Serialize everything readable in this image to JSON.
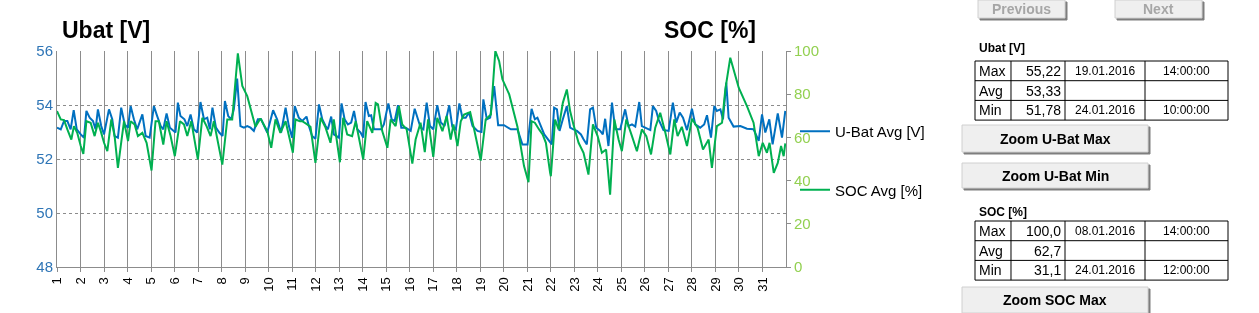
{
  "chart_data": {
    "type": "line",
    "ylabel": "Ubat [V]",
    "y2label": "SOC [%]",
    "xlim": [
      1,
      32
    ],
    "xticks": [
      1,
      2,
      3,
      4,
      5,
      6,
      7,
      8,
      9,
      10,
      11,
      12,
      13,
      14,
      15,
      16,
      17,
      18,
      19,
      20,
      21,
      22,
      23,
      24,
      25,
      26,
      27,
      28,
      29,
      30,
      31
    ],
    "ylim": [
      48,
      56
    ],
    "yticks": [
      48,
      50,
      52,
      54,
      56
    ],
    "y2lim": [
      0,
      100
    ],
    "y2ticks": [
      0,
      20,
      40,
      60,
      80,
      100
    ],
    "grid": true,
    "legend": "right",
    "marker": "none",
    "line_style": "solid",
    "series": [
      {
        "name": "U-Bat Avg [V]",
        "color": "#0070c0",
        "x": [
          1.0,
          1.16,
          1.3,
          1.44,
          1.58,
          1.71,
          1.84,
          2.01,
          2.15,
          2.25,
          2.39,
          2.53,
          2.64,
          2.74,
          2.88,
          3.0,
          3.21,
          3.35,
          3.45,
          3.59,
          3.73,
          3.88,
          4.02,
          4.13,
          4.27,
          4.41,
          4.63,
          4.77,
          4.94,
          5.12,
          5.26,
          5.41,
          5.52,
          5.66,
          5.8,
          6.04,
          6.14,
          6.25,
          6.42,
          6.54,
          6.68,
          6.82,
          6.96,
          7.1,
          7.25,
          7.39,
          7.5,
          7.61,
          7.76,
          7.9,
          8.04,
          8.14,
          8.28,
          8.41,
          8.52,
          8.66,
          8.8,
          8.95,
          9.09,
          9.23,
          9.37,
          9.54,
          9.68,
          9.94,
          10.19,
          10.36,
          10.53,
          10.72,
          10.86,
          11.0,
          11.11,
          11.28,
          11.43,
          11.61,
          11.71,
          11.85,
          11.99,
          12.14,
          12.28,
          12.42,
          12.52,
          12.66,
          12.77,
          12.99,
          13.1,
          13.23,
          13.37,
          13.51,
          13.63,
          13.77,
          13.91,
          14.02,
          14.12,
          14.26,
          14.36,
          14.48,
          14.65,
          14.79,
          14.9,
          15.09,
          15.23,
          15.36,
          15.5,
          15.64,
          15.83,
          16.04,
          16.21,
          16.35,
          16.46,
          16.58,
          16.72,
          16.86,
          17.0,
          17.17,
          17.32,
          17.48,
          17.68,
          17.81,
          17.96,
          18.11,
          18.24,
          18.38,
          18.52,
          18.67,
          18.88,
          19.05,
          19.13,
          19.28,
          19.42,
          19.59,
          19.76,
          20.01,
          20.3,
          20.58,
          20.79,
          21.01,
          21.18,
          21.32,
          21.43,
          21.72,
          22.04,
          22.14,
          22.26,
          22.37,
          22.51,
          22.68,
          22.82,
          22.96,
          23.11,
          23.28,
          23.39,
          23.53,
          23.67,
          23.79,
          23.93,
          24.1,
          24.21,
          24.31,
          24.45,
          24.6,
          24.74,
          24.95,
          25.16,
          25.3,
          25.45,
          25.59,
          25.76,
          25.87,
          26.01,
          26.23,
          26.34,
          26.48,
          26.58,
          26.79,
          27.01,
          27.19,
          27.33,
          27.48,
          27.62,
          27.79,
          28.0,
          28.14,
          28.35,
          28.52,
          28.64,
          28.81,
          28.95,
          29.06,
          29.21,
          29.32,
          29.46,
          29.56,
          29.77,
          30.06,
          30.34,
          30.62,
          30.84,
          30.98,
          31.12,
          31.29,
          31.43,
          31.65,
          31.83,
          31.97
        ],
        "values": [
          53.16,
          53.1,
          53.41,
          53.41,
          53.1,
          53.81,
          53.1,
          52.91,
          52.79,
          53.78,
          53.53,
          53.41,
          53.1,
          53.84,
          53.22,
          52.91,
          53.84,
          53.47,
          52.85,
          52.79,
          53.9,
          53.28,
          53.16,
          53.96,
          53.47,
          53.1,
          53.65,
          52.85,
          52.79,
          53.96,
          53.59,
          53.22,
          53.1,
          53.69,
          53.16,
          52.98,
          54.09,
          53.59,
          53.47,
          53.22,
          53.65,
          53.1,
          52.98,
          54.11,
          53.47,
          53.53,
          53.1,
          53.9,
          53.16,
          52.98,
          52.85,
          54.15,
          53.59,
          53.47,
          53.84,
          54.98,
          53.22,
          53.16,
          53.22,
          53.16,
          53.04,
          53.47,
          53.47,
          52.98,
          53.81,
          53.47,
          52.98,
          53.9,
          53.22,
          52.79,
          53.96,
          53.53,
          53.41,
          53.57,
          53.22,
          52.85,
          52.75,
          54.02,
          53.47,
          53.22,
          53.1,
          53.57,
          52.91,
          52.79,
          54.06,
          53.47,
          53.28,
          53.35,
          53.78,
          53.1,
          52.98,
          52.79,
          54.11,
          53.59,
          53.62,
          53.1,
          53.1,
          53.1,
          53.28,
          54.06,
          53.47,
          53.41,
          53.99,
          53.16,
          53.16,
          53.04,
          53.86,
          53.47,
          53.16,
          53.1,
          54.09,
          53.22,
          53.1,
          53.99,
          53.35,
          53.22,
          53.99,
          53.2,
          53.1,
          54.06,
          53.53,
          53.53,
          53.72,
          53.22,
          53.04,
          53.0,
          54.21,
          53.47,
          53.53,
          54.7,
          53.25,
          53.25,
          53.1,
          53.1,
          52.54,
          52.54,
          53.86,
          53.47,
          53.53,
          52.91,
          52.54,
          53.9,
          53.84,
          53.04,
          53.47,
          53.96,
          53.16,
          53.1,
          53.04,
          52.91,
          52.73,
          52.54,
          53.84,
          53.9,
          53.16,
          53.04,
          52.91,
          53.49,
          52.48,
          54.09,
          53.1,
          53.1,
          53.84,
          53.22,
          53.28,
          53.2,
          54.11,
          53.22,
          53.16,
          53.07,
          53.96,
          53.78,
          53.47,
          53.07,
          53.04,
          54.09,
          53.35,
          53.72,
          53.53,
          53.07,
          53.86,
          53.28,
          53.16,
          53.28,
          53.62,
          52.79,
          53.96,
          53.78,
          53.84,
          53.47,
          54.83,
          53.53,
          53.2,
          53.22,
          53.12,
          53.1,
          52.67,
          53.65,
          52.98,
          53.47,
          52.54,
          53.69,
          52.79,
          53.78
        ]
      },
      {
        "name": "SOC Avg [%]",
        "color": "#00b050",
        "axis": "y2",
        "x": [
          1.0,
          1.16,
          1.3,
          1.44,
          1.61,
          1.72,
          1.86,
          2.01,
          2.12,
          2.25,
          2.43,
          2.6,
          2.74,
          2.86,
          3.0,
          3.14,
          3.31,
          3.45,
          3.59,
          3.71,
          3.85,
          4.02,
          4.13,
          4.3,
          4.44,
          4.63,
          4.81,
          5.02,
          5.19,
          5.33,
          5.52,
          5.66,
          5.83,
          6.01,
          6.23,
          6.4,
          6.54,
          6.71,
          6.99,
          7.18,
          7.36,
          7.53,
          7.67,
          8.03,
          8.24,
          8.45,
          8.69,
          8.88,
          9.09,
          9.44,
          9.65,
          9.94,
          10.11,
          10.29,
          10.5,
          10.72,
          11.03,
          11.14,
          11.33,
          11.43,
          11.64,
          11.78,
          11.99,
          12.21,
          12.42,
          12.63,
          12.77,
          13.03,
          13.17,
          13.34,
          13.55,
          13.7,
          14.02,
          14.19,
          14.41,
          14.55,
          14.65,
          14.83,
          15.05,
          15.19,
          15.4,
          15.54,
          15.68,
          15.87,
          16.11,
          16.25,
          16.46,
          16.64,
          16.78,
          17.0,
          17.17,
          17.39,
          17.57,
          17.74,
          17.86,
          18.03,
          18.17,
          18.31,
          18.57,
          18.74,
          19.02,
          19.23,
          19.45,
          19.64,
          19.8,
          19.94,
          20.23,
          20.58,
          20.86,
          21.05,
          21.18,
          21.32,
          21.5,
          21.65,
          21.79,
          21.97,
          22.0,
          22.18,
          22.33,
          22.51,
          22.68,
          22.82,
          22.96,
          23.18,
          23.39,
          23.6,
          23.79,
          23.99,
          24.17,
          24.35,
          24.52,
          24.7,
          24.88,
          25.02,
          25.21,
          25.45,
          25.66,
          25.87,
          26.06,
          26.26,
          26.44,
          26.65,
          26.87,
          27.08,
          27.25,
          27.39,
          27.57,
          27.79,
          28.0,
          28.24,
          28.47,
          28.71,
          28.85,
          29.06,
          29.28,
          29.42,
          29.63,
          29.99,
          30.34,
          30.62,
          30.84,
          31.01,
          31.19,
          31.3,
          31.48,
          31.65,
          31.79,
          31.9,
          31.97
        ],
        "values": [
          72.2,
          68.3,
          68.0,
          63.7,
          59.0,
          65.2,
          62.1,
          56.0,
          52.4,
          67.5,
          66.8,
          60.6,
          66.8,
          62.9,
          57.5,
          53.6,
          68.3,
          60.6,
          45.9,
          56.0,
          67.5,
          58.3,
          67.5,
          66.0,
          60.6,
          62.1,
          57.5,
          44.7,
          67.5,
          67.5,
          56.7,
          67.5,
          60.6,
          51.3,
          67.5,
          66.0,
          60.6,
          67.5,
          49.8,
          69.1,
          65.2,
          60.6,
          67.5,
          47.4,
          68.3,
          68.3,
          98.9,
          83.8,
          79.1,
          64.9,
          68.8,
          62.9,
          55.2,
          68.3,
          62.1,
          67.5,
          52.9,
          68.3,
          67.5,
          67.5,
          66.0,
          64.9,
          48.2,
          69.1,
          64.5,
          57.5,
          68.3,
          48.5,
          69.1,
          61.4,
          60.6,
          67.5,
          49.8,
          67.5,
          62.1,
          76.0,
          75.3,
          62.9,
          55.2,
          68.3,
          65.2,
          74.5,
          66.0,
          63.7,
          47.9,
          59.0,
          66.8,
          53.2,
          68.3,
          51.0,
          69.1,
          62.9,
          69.9,
          59.0,
          66.0,
          56.0,
          67.5,
          70.6,
          71.7,
          63.7,
          49.3,
          68.3,
          70.6,
          100.0,
          95.4,
          86.9,
          79.9,
          64.9,
          46.7,
          39.3,
          67.5,
          66.8,
          63.7,
          61.4,
          57.5,
          43.6,
          42.0,
          68.3,
          63.7,
          76.0,
          82.2,
          72.2,
          66.0,
          57.5,
          52.9,
          42.8,
          66.0,
          60.6,
          52.9,
          54.4,
          33.5,
          68.3,
          59.0,
          53.6,
          68.3,
          60.6,
          53.6,
          63.7,
          60.6,
          52.1,
          64.5,
          71.4,
          62.1,
          52.1,
          68.3,
          60.6,
          64.9,
          56.0,
          68.6,
          64.5,
          54.4,
          59.0,
          45.9,
          65.2,
          66.8,
          82.2,
          96.9,
          83.0,
          74.5,
          66.8,
          51.3,
          57.5,
          52.9,
          57.5,
          43.6,
          48.2,
          56.0,
          51.3,
          57.2
        ]
      }
    ],
    "annotations": [
      "Previous",
      "Next",
      "Ubat [V]",
      "Max",
      "55,22",
      "19.01.2016",
      "14:00:00",
      "Avg",
      "53,33",
      "Min",
      "51,78",
      "24.01.2016",
      "10:00:00",
      "Zoom U-Bat Max",
      "Zoom U-Bat Min",
      "SOC [%]",
      "Max",
      "100,0",
      "08.01.2016",
      "14:00:00",
      "Avg",
      "62,7",
      "Min",
      "31,1",
      "24.01.2016",
      "12:00:00",
      "Zoom SOC Max"
    ]
  }
}
